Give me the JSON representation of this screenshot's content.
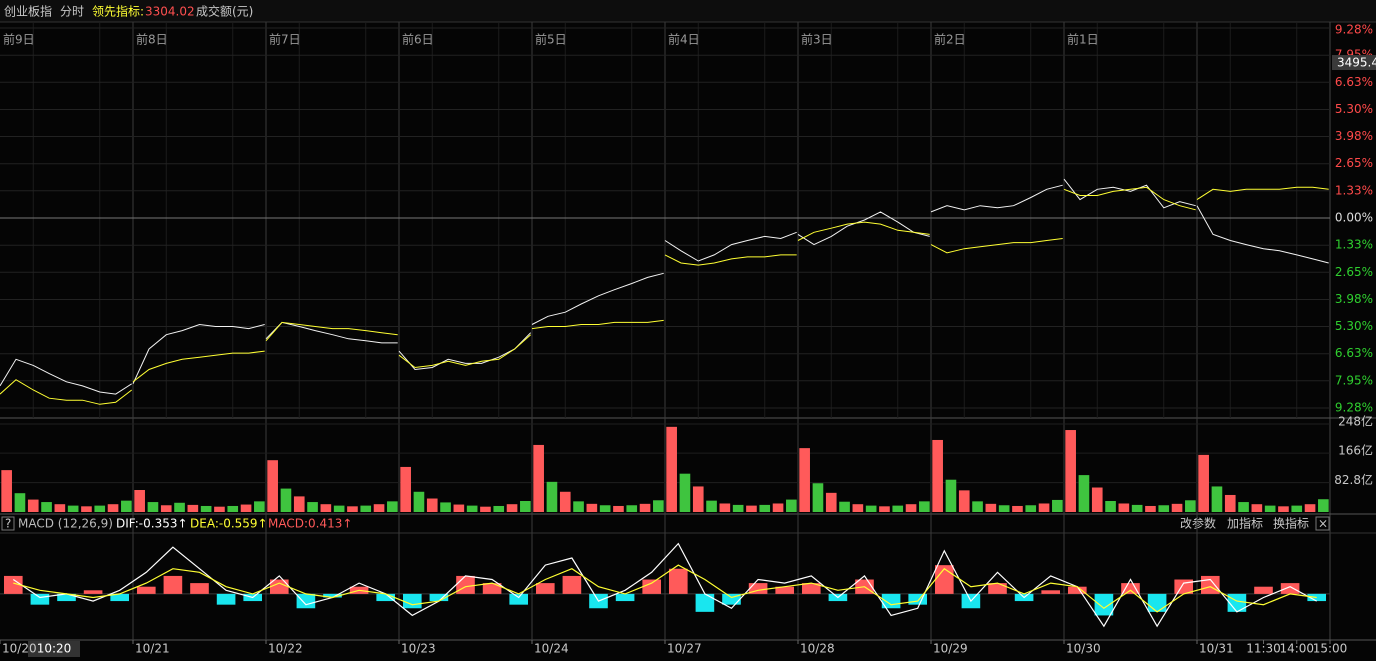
{
  "header": {
    "name": "创业板指",
    "mode": "分时",
    "indicator_label": "领先指标:",
    "indicator_value": "3304.02",
    "volume_label": "成交额(元)"
  },
  "price_tag": "3495.4",
  "cursor_label": "10:20",
  "help_icon": "?",
  "close_icon": "×",
  "toolbar": [
    "改参数",
    "加指标",
    "换指标"
  ],
  "chart_data": [
    {
      "type": "line",
      "grid": true,
      "up_color": "#ff4a4a",
      "down_color": "#2fcf2f",
      "zero_color": "#dddddd",
      "day_labels": [
        "前9日",
        "前8日",
        "前7日",
        "前6日",
        "前5日",
        "前4日",
        "前3日",
        "前2日",
        "前1日"
      ],
      "xlim": [
        0,
        10
      ],
      "ylim": [
        -9.28,
        9.28
      ],
      "yticks": [
        {
          "value": 9.28,
          "label": "9.28%"
        },
        {
          "value": 7.95,
          "label": "7.95%"
        },
        {
          "value": 6.63,
          "label": "6.63%"
        },
        {
          "value": 5.3,
          "label": "5.30%"
        },
        {
          "value": 3.98,
          "label": "3.98%"
        },
        {
          "value": 2.65,
          "label": "2.65%"
        },
        {
          "value": 1.33,
          "label": "1.33%"
        },
        {
          "value": 0,
          "label": "0.00%"
        },
        {
          "value": -1.33,
          "label": "1.33%"
        },
        {
          "value": -2.65,
          "label": "2.65%"
        },
        {
          "value": -3.98,
          "label": "3.98%"
        },
        {
          "value": -5.3,
          "label": "5.30%"
        },
        {
          "value": -6.63,
          "label": "6.63%"
        },
        {
          "value": -7.95,
          "label": "7.95%"
        },
        {
          "value": -9.28,
          "label": "9.28%"
        }
      ],
      "x": [
        0,
        0.12,
        0.25,
        0.37,
        0.5,
        0.62,
        0.75,
        0.87,
        0.99,
        0.995,
        1,
        1.12,
        1.25,
        1.37,
        1.5,
        1.62,
        1.75,
        1.87,
        1.99,
        1.995,
        2,
        2.12,
        2.25,
        2.37,
        2.5,
        2.62,
        2.75,
        2.87,
        2.99,
        2.995,
        3,
        3.12,
        3.25,
        3.37,
        3.5,
        3.62,
        3.75,
        3.87,
        3.99,
        3.995,
        4,
        4.12,
        4.25,
        4.37,
        4.5,
        4.62,
        4.75,
        4.87,
        4.99,
        4.995,
        5,
        5.12,
        5.25,
        5.37,
        5.5,
        5.62,
        5.75,
        5.87,
        5.99,
        5.995,
        6,
        6.12,
        6.25,
        6.37,
        6.5,
        6.62,
        6.75,
        6.87,
        6.99,
        6.995,
        7,
        7.12,
        7.25,
        7.37,
        7.5,
        7.62,
        7.75,
        7.87,
        7.99,
        7.995,
        8,
        8.12,
        8.25,
        8.37,
        8.5,
        8.62,
        8.75,
        8.87,
        8.99,
        8.995,
        9,
        9.12,
        9.25,
        9.37,
        9.5,
        9.62,
        9.75,
        9.87,
        9.99,
        9.995
      ],
      "series": [
        {
          "color": "#f2f2f2",
          "values": [
            -8.2,
            -6.9,
            -7.2,
            -7.6,
            -8.0,
            -8.2,
            -8.5,
            -8.6,
            -8.1,
            null,
            -8.1,
            -6.4,
            -5.7,
            -5.5,
            -5.2,
            -5.3,
            -5.3,
            -5.4,
            -5.2,
            null,
            -5.9,
            -5.1,
            -5.3,
            -5.5,
            -5.7,
            -5.9,
            -6.0,
            -6.1,
            -6.1,
            null,
            -6.5,
            -7.4,
            -7.3,
            -6.9,
            -7.1,
            -7.1,
            -6.8,
            -6.4,
            -5.6,
            null,
            -5.2,
            -4.8,
            -4.6,
            -4.2,
            -3.8,
            -3.5,
            -3.2,
            -2.9,
            -2.7,
            null,
            -1.1,
            -1.6,
            -2.1,
            -1.8,
            -1.3,
            -1.1,
            -0.9,
            -1.0,
            -0.7,
            null,
            -0.8,
            -1.3,
            -0.9,
            -0.4,
            -0.1,
            0.3,
            -0.2,
            -0.7,
            -0.9,
            null,
            0.3,
            0.6,
            0.4,
            0.6,
            0.5,
            0.6,
            1.0,
            1.4,
            1.6,
            null,
            1.9,
            0.9,
            1.4,
            1.5,
            1.3,
            1.6,
            0.5,
            0.8,
            0.6,
            null,
            0.6,
            -0.8,
            -1.1,
            -1.3,
            -1.5,
            -1.6,
            -1.8,
            -2.0,
            -2.2,
            null
          ]
        },
        {
          "color": "#ffff33",
          "values": [
            -8.6,
            -7.9,
            -8.4,
            -8.8,
            -8.9,
            -8.9,
            -9.1,
            -9.0,
            -8.4,
            null,
            -8.0,
            -7.4,
            -7.1,
            -6.9,
            -6.8,
            -6.7,
            -6.6,
            -6.6,
            -6.5,
            null,
            -6.0,
            -5.1,
            -5.2,
            -5.3,
            -5.4,
            -5.4,
            -5.5,
            -5.6,
            -5.7,
            null,
            -6.7,
            -7.3,
            -7.2,
            -7.0,
            -7.2,
            -7.0,
            -6.9,
            -6.4,
            -5.7,
            null,
            -5.4,
            -5.3,
            -5.3,
            -5.2,
            -5.2,
            -5.1,
            -5.1,
            -5.1,
            -5.0,
            null,
            -1.8,
            -2.2,
            -2.3,
            -2.2,
            -2.0,
            -1.9,
            -1.9,
            -1.8,
            -1.8,
            null,
            -1.1,
            -0.7,
            -0.5,
            -0.3,
            -0.2,
            -0.3,
            -0.6,
            -0.7,
            -0.8,
            null,
            -1.3,
            -1.7,
            -1.5,
            -1.4,
            -1.3,
            -1.2,
            -1.2,
            -1.1,
            -1.0,
            null,
            1.4,
            1.1,
            1.1,
            1.3,
            1.4,
            1.5,
            0.9,
            0.6,
            0.4,
            null,
            0.9,
            1.4,
            1.3,
            1.4,
            1.4,
            1.4,
            1.5,
            1.5,
            1.4,
            null
          ]
        }
      ]
    },
    {
      "type": "bar",
      "up_color": "#ff5a5a",
      "down_color": "#3fc43f",
      "xlim": [
        0,
        10
      ],
      "ylim": [
        0,
        248
      ],
      "yticks": [
        {
          "value": 82.8,
          "label": "82.8亿"
        },
        {
          "value": 166,
          "label": "166亿"
        },
        {
          "value": 248,
          "label": "248亿"
        }
      ],
      "x": [
        0.05,
        0.15,
        0.25,
        0.35,
        0.45,
        0.55,
        0.65,
        0.75,
        0.85,
        0.95,
        1.05,
        1.15,
        1.25,
        1.35,
        1.45,
        1.55,
        1.65,
        1.75,
        1.85,
        1.95,
        2.05,
        2.15,
        2.25,
        2.35,
        2.45,
        2.55,
        2.65,
        2.75,
        2.85,
        2.95,
        3.05,
        3.15,
        3.25,
        3.35,
        3.45,
        3.55,
        3.65,
        3.75,
        3.85,
        3.95,
        4.05,
        4.15,
        4.25,
        4.35,
        4.45,
        4.55,
        4.65,
        4.75,
        4.85,
        4.95,
        5.05,
        5.15,
        5.25,
        5.35,
        5.45,
        5.55,
        5.65,
        5.75,
        5.85,
        5.95,
        6.05,
        6.15,
        6.25,
        6.35,
        6.45,
        6.55,
        6.65,
        6.75,
        6.85,
        6.95,
        7.05,
        7.15,
        7.25,
        7.35,
        7.45,
        7.55,
        7.65,
        7.75,
        7.85,
        7.95,
        8.05,
        8.15,
        8.25,
        8.35,
        8.45,
        8.55,
        8.65,
        8.75,
        8.85,
        8.95,
        9.05,
        9.15,
        9.25,
        9.35,
        9.45,
        9.55,
        9.65,
        9.75,
        9.85,
        9.95
      ],
      "values": [
        118,
        53,
        35,
        28,
        22,
        18,
        16,
        18,
        22,
        32,
        62,
        28,
        19,
        26,
        20,
        17,
        15,
        17,
        21,
        30,
        146,
        66,
        44,
        28,
        22,
        18,
        16,
        18,
        22,
        30,
        127,
        57,
        38,
        27,
        21,
        18,
        15,
        17,
        22,
        31,
        189,
        85,
        57,
        30,
        23,
        19,
        17,
        19,
        23,
        33,
        240,
        108,
        72,
        32,
        24,
        20,
        18,
        20,
        24,
        35,
        180,
        81,
        54,
        29,
        22,
        18,
        16,
        18,
        22,
        30,
        203,
        91,
        61,
        30,
        23,
        19,
        17,
        19,
        24,
        34,
        231,
        104,
        69,
        31,
        24,
        20,
        17,
        19,
        23,
        33,
        161,
        72,
        48,
        28,
        22,
        18,
        16,
        18,
        22,
        36
      ]
    },
    {
      "type": "macd",
      "xlim": [
        0,
        10
      ],
      "ylim": [
        -1.2,
        1.5
      ],
      "pos_color": "#ff5a5a",
      "neg_color": "#19e6ef",
      "readout": [
        {
          "text": "MACD (12,26,9)",
          "color": "#bbbbbb"
        },
        {
          "text": "DIF:-0.353↑",
          "color": "#ffffff"
        },
        {
          "text": "DEA:-0.559↑",
          "color": "#ffff33"
        },
        {
          "text": "MACD:0.413↑",
          "color": "#ff5a5a"
        }
      ],
      "xticks": [
        {
          "value": 0,
          "label": "10/20"
        },
        {
          "value": 1,
          "label": "10/21"
        },
        {
          "value": 2,
          "label": "10/22"
        },
        {
          "value": 3,
          "label": "10/23"
        },
        {
          "value": 4,
          "label": "10/24"
        },
        {
          "value": 5,
          "label": "10/27"
        },
        {
          "value": 6,
          "label": "10/28"
        },
        {
          "value": 7,
          "label": "10/29"
        },
        {
          "value": 8,
          "label": "10/30"
        },
        {
          "value": 9,
          "label": "10/31"
        },
        {
          "value": 9.5,
          "label": "11:30"
        },
        {
          "value": 9.75,
          "label": "14:00"
        },
        {
          "value": 10,
          "label": "15:00"
        }
      ],
      "x": [
        0.1,
        0.3,
        0.5,
        0.7,
        0.9,
        1.1,
        1.3,
        1.5,
        1.7,
        1.9,
        2.1,
        2.3,
        2.5,
        2.7,
        2.9,
        3.1,
        3.3,
        3.5,
        3.7,
        3.9,
        4.1,
        4.3,
        4.5,
        4.7,
        4.9,
        5.1,
        5.3,
        5.5,
        5.7,
        5.9,
        6.1,
        6.3,
        6.5,
        6.7,
        6.9,
        7.1,
        7.3,
        7.5,
        7.7,
        7.9,
        8.1,
        8.3,
        8.5,
        8.7,
        8.9,
        9.1,
        9.3,
        9.5,
        9.7,
        9.9
      ],
      "histogram": [
        0.5,
        -0.3,
        -0.2,
        0.1,
        -0.2,
        0.2,
        0.5,
        0.3,
        -0.3,
        -0.2,
        0.4,
        -0.4,
        -0.1,
        0.2,
        -0.2,
        -0.4,
        -0.2,
        0.5,
        0.3,
        -0.3,
        0.3,
        0.5,
        -0.4,
        -0.2,
        0.4,
        0.7,
        -0.5,
        -0.3,
        0.3,
        0.2,
        0.3,
        -0.2,
        0.4,
        -0.4,
        -0.3,
        0.8,
        -0.4,
        0.3,
        -0.2,
        0.1,
        0.2,
        -0.6,
        0.3,
        -0.5,
        0.4,
        0.5,
        -0.5,
        0.2,
        0.3,
        -0.2
      ],
      "series": [
        {
          "color": "#ffffff",
          "values": [
            0.4,
            -0.1,
            0.0,
            -0.2,
            0.1,
            0.6,
            1.3,
            0.7,
            0.1,
            -0.1,
            0.5,
            -0.3,
            -0.1,
            0.3,
            0.0,
            -0.6,
            -0.2,
            0.5,
            0.4,
            -0.1,
            0.8,
            1.0,
            -0.2,
            0.1,
            0.6,
            1.4,
            0.0,
            -0.4,
            0.4,
            0.3,
            0.5,
            -0.1,
            0.5,
            -0.6,
            -0.4,
            1.2,
            -0.2,
            0.6,
            -0.1,
            0.5,
            0.2,
            -0.9,
            0.4,
            -0.9,
            0.3,
            0.4,
            -0.5,
            -0.1,
            0.2,
            -0.2
          ]
        },
        {
          "color": "#ffff33",
          "values": [
            0.3,
            0.1,
            0.0,
            -0.1,
            0.0,
            0.3,
            0.7,
            0.6,
            0.2,
            0.0,
            0.3,
            0.0,
            -0.1,
            0.1,
            0.0,
            -0.3,
            -0.2,
            0.2,
            0.3,
            0.0,
            0.4,
            0.7,
            0.2,
            0.0,
            0.3,
            0.8,
            0.4,
            -0.1,
            0.1,
            0.2,
            0.3,
            0.1,
            0.2,
            -0.3,
            -0.2,
            0.7,
            0.2,
            0.3,
            0.0,
            0.3,
            0.2,
            -0.4,
            0.1,
            -0.5,
            0.0,
            0.2,
            -0.2,
            -0.3,
            0.0,
            -0.1
          ]
        }
      ]
    }
  ]
}
